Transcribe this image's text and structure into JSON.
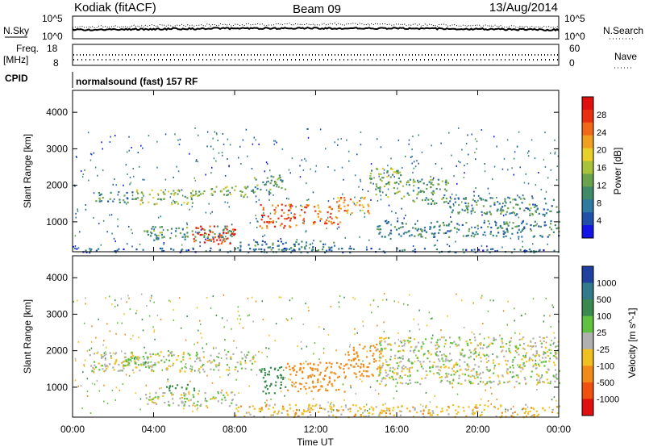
{
  "header": {
    "radar": "Kodiak (fitACF)",
    "beam": "Beam 09",
    "date": "13/Aug/2014"
  },
  "top_panels": {
    "nsky_label": "N.Sky",
    "nsky_ticks": [
      "10^5",
      "10^0"
    ],
    "nsearch_label": "N.Search",
    "nsearch_ticks": [
      "10^5",
      "10^0"
    ],
    "freq_label": "Freq.",
    "freq_unit": "[MHz]",
    "freq_ticks": [
      "18",
      "8"
    ],
    "nave_label": "Nave",
    "nave_ticks": [
      "60",
      "0"
    ],
    "cpid_label": "CPID",
    "cpid_text": "normalsound (fast) 157 RF"
  },
  "chart_data": [
    {
      "type": "heatmap",
      "panel": "power",
      "ylabel": "Slant Range [km]",
      "yticks": [
        "1000",
        "2000",
        "3000",
        "4000"
      ],
      "ylim": [
        180,
        4600
      ],
      "xlim": [
        "00:00",
        "24:00"
      ],
      "colorbar": {
        "label": "Power [dB]",
        "ticks": [
          "4",
          "8",
          "12",
          "16",
          "20",
          "24",
          "28"
        ],
        "range": [
          0,
          32
        ],
        "colors": [
          "#1414e6",
          "#2050a8",
          "#2e7aa0",
          "#3f8a68",
          "#6aa24e",
          "#a8c23a",
          "#e8d028",
          "#f0a020",
          "#f06818",
          "#e83010",
          "#e01010"
        ]
      },
      "bands": [
        {
          "t0": 1.0,
          "t1": 3.2,
          "r0": 1550,
          "r1": 1850,
          "value": 10
        },
        {
          "t0": 3.0,
          "t1": 6.0,
          "r0": 1500,
          "r1": 1900,
          "value": 16
        },
        {
          "t0": 6.0,
          "t1": 8.8,
          "r0": 1700,
          "r1": 2000,
          "value": 14
        },
        {
          "t0": 8.8,
          "t1": 10.5,
          "r0": 1800,
          "r1": 2300,
          "value": 12
        },
        {
          "t0": 9.2,
          "t1": 11.2,
          "r0": 850,
          "r1": 1500,
          "value": 26
        },
        {
          "t0": 11.2,
          "t1": 13.2,
          "r0": 950,
          "r1": 1500,
          "value": 24
        },
        {
          "t0": 13.0,
          "t1": 14.6,
          "r0": 1200,
          "r1": 1700,
          "value": 22
        },
        {
          "t0": 14.5,
          "t1": 16.2,
          "r0": 1700,
          "r1": 2500,
          "value": 14
        },
        {
          "t0": 16.2,
          "t1": 18.5,
          "r0": 1500,
          "r1": 2200,
          "value": 12
        },
        {
          "t0": 18.5,
          "t1": 24.0,
          "r0": 1200,
          "r1": 1700,
          "value": 10
        },
        {
          "t0": 3.5,
          "t1": 8.0,
          "r0": 500,
          "r1": 900,
          "value": 10
        },
        {
          "t0": 5.8,
          "t1": 8.0,
          "r0": 400,
          "r1": 900,
          "value": 28
        },
        {
          "t0": 8.0,
          "t1": 13.0,
          "r0": 220,
          "r1": 500,
          "value": 8
        },
        {
          "t0": 15.0,
          "t1": 24.0,
          "r0": 600,
          "r1": 1050,
          "value": 9
        },
        {
          "t0": 0.0,
          "t1": 24.0,
          "r0": 180,
          "r1": 300,
          "value": 6
        }
      ]
    },
    {
      "type": "heatmap",
      "panel": "velocity",
      "ylabel": "Slant Range [km]",
      "yticks": [
        "1000",
        "2000",
        "3000",
        "4000"
      ],
      "ylim": [
        180,
        4600
      ],
      "xlim": [
        "00:00",
        "24:00"
      ],
      "xticks": [
        "00:00",
        "04:00",
        "08:00",
        "12:00",
        "16:00",
        "20:00",
        "00:00"
      ],
      "xlabel": "Time UT",
      "colorbar": {
        "label": "Velocity [m s^-1]",
        "ticks": [
          "1000",
          "500",
          "100",
          "25",
          "-25",
          "-100",
          "-500",
          "-1000"
        ],
        "colors": [
          "#2040a0",
          "#307a8a",
          "#3a8a50",
          "#60c040",
          "#b0b0b0",
          "#f0c020",
          "#f08a18",
          "#f05010",
          "#e01010"
        ]
      },
      "bands": [
        {
          "t0": 0.8,
          "t1": 9.0,
          "r0": 1450,
          "r1": 2000,
          "value": 0
        },
        {
          "t0": 2.5,
          "t1": 4.0,
          "r0": 1600,
          "r1": 1900,
          "value": 60
        },
        {
          "t0": 3.5,
          "t1": 8.0,
          "r0": 500,
          "r1": 900,
          "value": 0
        },
        {
          "t0": 4.5,
          "t1": 6.0,
          "r0": 900,
          "r1": 1100,
          "value": 150
        },
        {
          "t0": 9.2,
          "t1": 10.5,
          "r0": 850,
          "r1": 1600,
          "value": 300
        },
        {
          "t0": 10.5,
          "t1": 13.5,
          "r0": 900,
          "r1": 1700,
          "value": -300
        },
        {
          "t0": 13.5,
          "t1": 15.2,
          "r0": 1300,
          "r1": 2200,
          "value": -400
        },
        {
          "t0": 15.0,
          "t1": 24.0,
          "r0": 1100,
          "r1": 2400,
          "value": 0
        },
        {
          "t0": 8.0,
          "t1": 24.0,
          "r0": 200,
          "r1": 550,
          "value": -60
        }
      ]
    }
  ],
  "colors": {
    "background": "#ffffff",
    "axis": "#000000",
    "trace": "#000000"
  }
}
